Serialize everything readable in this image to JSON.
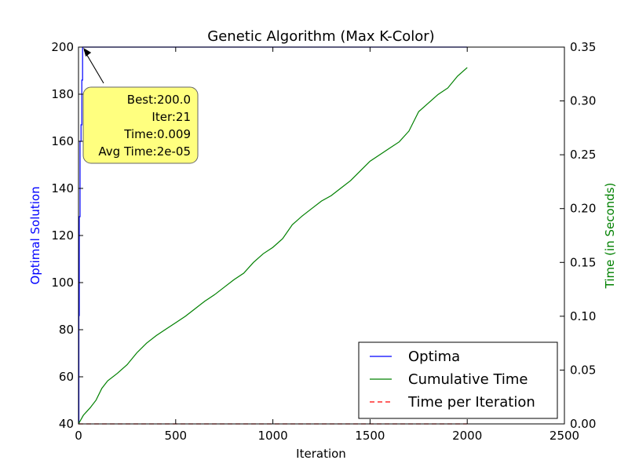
{
  "chart_data": {
    "type": "line",
    "title": "Genetic Algorithm (Max K-Color)",
    "xlabel": "Iteration",
    "ylabel_left": "Optimal Solution",
    "ylabel_right": "Time (in Seconds)",
    "xlim": [
      0,
      2500
    ],
    "ylim_left": [
      40,
      200
    ],
    "ylim_right": [
      0,
      0.35
    ],
    "x_ticks": [
      "0",
      "500",
      "1000",
      "1500",
      "2000",
      "2500"
    ],
    "y_left_ticks": [
      "40",
      "60",
      "80",
      "100",
      "120",
      "140",
      "160",
      "180",
      "200"
    ],
    "y_right_ticks": [
      "0.00",
      "0.05",
      "0.10",
      "0.15",
      "0.20",
      "0.25",
      "0.30",
      "0.35"
    ],
    "grid": false,
    "legend_position": "bottom-right",
    "colors": {
      "optima": "#0000ff",
      "cumulative": "#008000",
      "per_iteration": "#ff0000",
      "left_axis_label": "#0000ff",
      "right_axis_label": "#008000",
      "annotation_box": "#ffff7f"
    },
    "series": [
      {
        "name": "Optima",
        "axis": "left",
        "style": "solid",
        "x": [
          0,
          2,
          2,
          4,
          4,
          8,
          8,
          13,
          13,
          17,
          17,
          21,
          21,
          2000
        ],
        "y": [
          40,
          40,
          86,
          86,
          128,
          128,
          160,
          160,
          167,
          167,
          186,
          186,
          200,
          200
        ]
      },
      {
        "name": "Cumulative Time",
        "axis": "right",
        "style": "solid",
        "x": [
          0,
          25,
          60,
          90,
          120,
          150,
          200,
          250,
          300,
          350,
          400,
          450,
          500,
          550,
          600,
          650,
          700,
          750,
          800,
          850,
          900,
          950,
          1000,
          1050,
          1100,
          1150,
          1200,
          1250,
          1300,
          1350,
          1400,
          1450,
          1500,
          1550,
          1600,
          1650,
          1700,
          1750,
          1800,
          1850,
          1900,
          1950,
          2000
        ],
        "y": [
          0.0,
          0.008,
          0.015,
          0.022,
          0.033,
          0.04,
          0.047,
          0.055,
          0.066,
          0.075,
          0.082,
          0.088,
          0.094,
          0.1,
          0.107,
          0.114,
          0.12,
          0.127,
          0.134,
          0.14,
          0.15,
          0.158,
          0.164,
          0.172,
          0.185,
          0.193,
          0.2,
          0.207,
          0.212,
          0.219,
          0.226,
          0.235,
          0.244,
          0.25,
          0.256,
          0.262,
          0.272,
          0.29,
          0.298,
          0.306,
          0.312,
          0.323,
          0.331
        ]
      },
      {
        "name": "Time per Iteration",
        "axis": "right",
        "style": "dashed",
        "x": [
          0,
          2000
        ],
        "y": [
          2e-05,
          2e-05
        ]
      }
    ],
    "annotation": {
      "lines": [
        "Best:200.0",
        "Iter:21",
        "Time:0.009",
        "Avg Time:2e-05"
      ],
      "target_x": 21,
      "target_y": 200
    }
  }
}
